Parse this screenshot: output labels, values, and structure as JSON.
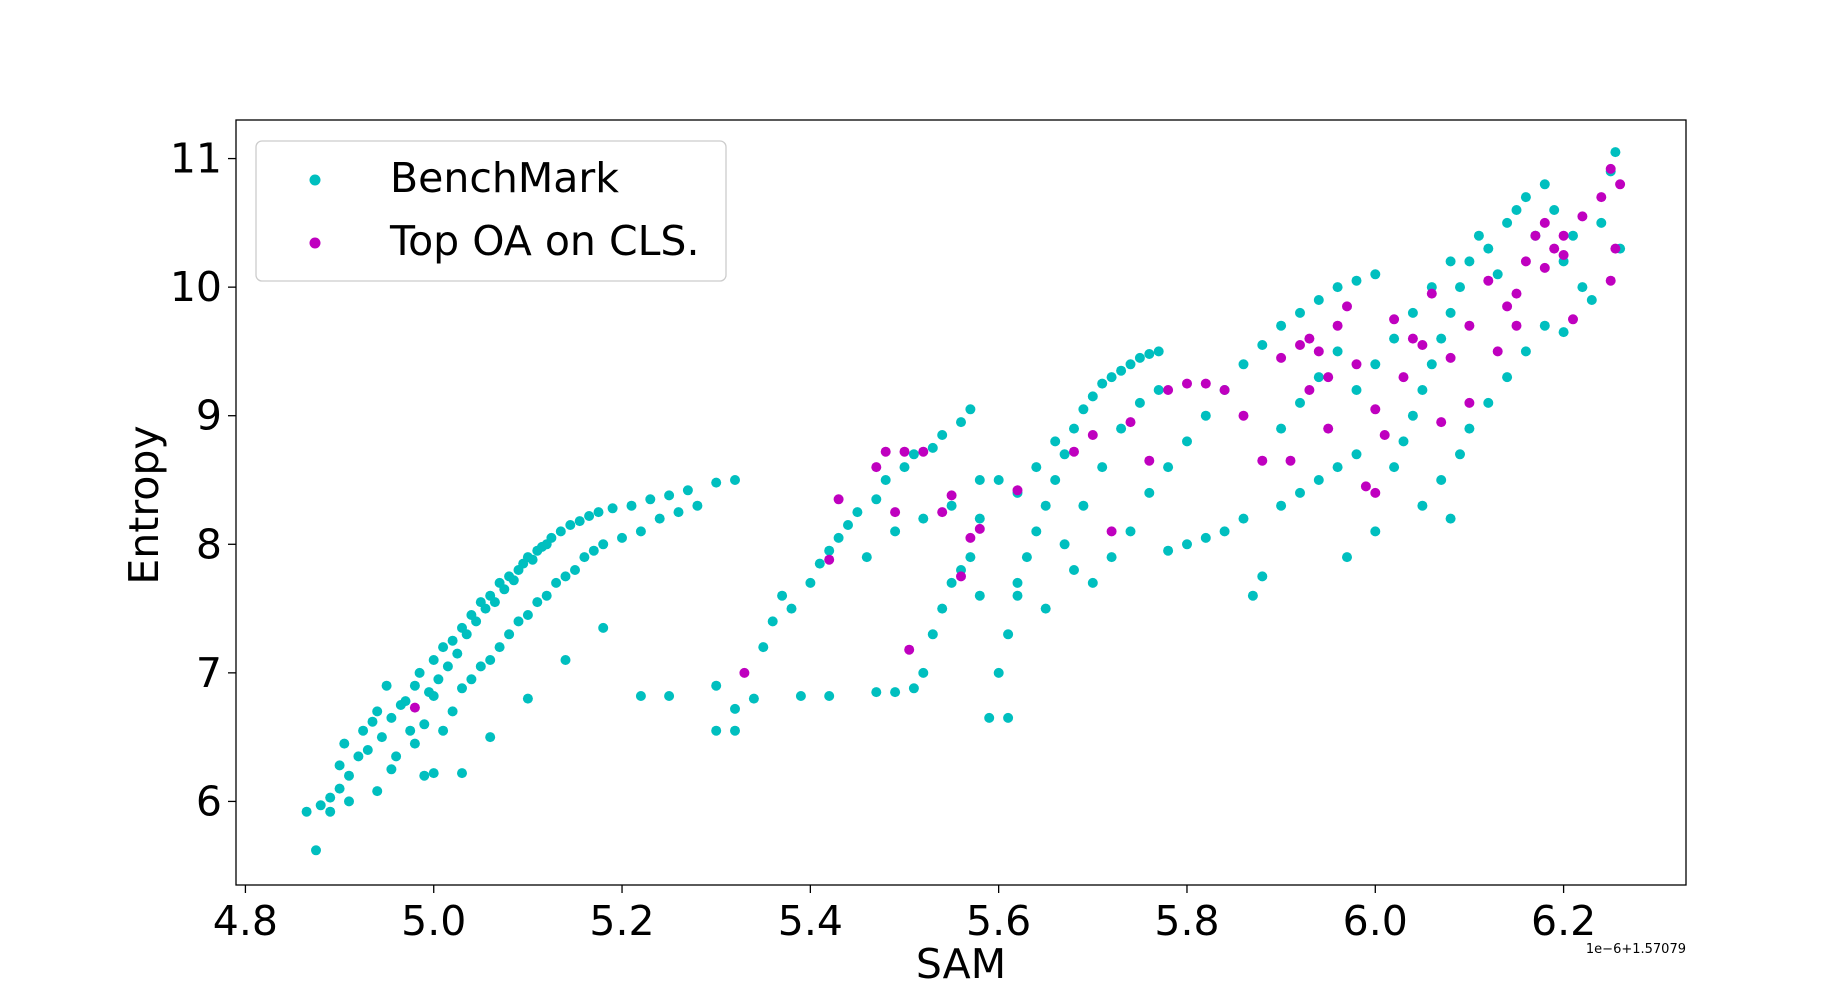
{
  "chart_data": {
    "type": "scatter",
    "xlabel": "SAM",
    "ylabel": "Entropy",
    "x_offset_label": "1e−6+1.57079",
    "xlim": [
      4.79,
      6.33
    ],
    "ylim": [
      5.35,
      11.3
    ],
    "xticks": [
      4.8,
      5.0,
      5.2,
      5.4,
      5.6,
      5.8,
      6.0,
      6.2
    ],
    "xtick_labels": [
      "4.8",
      "5.0",
      "5.2",
      "5.4",
      "5.6",
      "5.8",
      "6.0",
      "6.2"
    ],
    "yticks": [
      6,
      7,
      8,
      9,
      10,
      11
    ],
    "ytick_labels": [
      "6",
      "7",
      "8",
      "9",
      "10",
      "11"
    ],
    "grid": false,
    "legend_position": "upper-left",
    "series": [
      {
        "name": "BenchMark",
        "color": "#00bfbf",
        "points": [
          [
            4.865,
            5.92
          ],
          [
            4.875,
            5.62
          ],
          [
            4.88,
            5.97
          ],
          [
            4.89,
            5.92
          ],
          [
            4.89,
            6.03
          ],
          [
            4.9,
            6.1
          ],
          [
            4.9,
            6.28
          ],
          [
            4.905,
            6.45
          ],
          [
            4.91,
            6.2
          ],
          [
            4.91,
            6.0
          ],
          [
            4.92,
            6.35
          ],
          [
            4.925,
            6.55
          ],
          [
            4.93,
            6.4
          ],
          [
            4.935,
            6.62
          ],
          [
            4.94,
            6.08
          ],
          [
            4.94,
            6.7
          ],
          [
            4.945,
            6.5
          ],
          [
            4.95,
            6.9
          ],
          [
            4.955,
            6.25
          ],
          [
            4.955,
            6.65
          ],
          [
            4.96,
            6.35
          ],
          [
            4.965,
            6.75
          ],
          [
            4.97,
            6.78
          ],
          [
            4.975,
            6.55
          ],
          [
            4.98,
            6.45
          ],
          [
            4.98,
            6.9
          ],
          [
            4.985,
            7.0
          ],
          [
            4.99,
            6.6
          ],
          [
            4.99,
            6.2
          ],
          [
            4.995,
            6.85
          ],
          [
            5.0,
            7.1
          ],
          [
            5.0,
            6.82
          ],
          [
            5.005,
            6.95
          ],
          [
            5.01,
            7.2
          ],
          [
            5.01,
            6.55
          ],
          [
            5.015,
            7.05
          ],
          [
            5.02,
            7.25
          ],
          [
            5.02,
            6.7
          ],
          [
            5.025,
            7.15
          ],
          [
            5.03,
            7.35
          ],
          [
            5.03,
            6.88
          ],
          [
            5.035,
            7.3
          ],
          [
            5.04,
            7.45
          ],
          [
            5.04,
            6.95
          ],
          [
            5.045,
            7.4
          ],
          [
            5.05,
            7.55
          ],
          [
            5.05,
            7.05
          ],
          [
            5.055,
            7.5
          ],
          [
            5.06,
            7.6
          ],
          [
            5.06,
            7.1
          ],
          [
            5.065,
            7.55
          ],
          [
            5.07,
            7.7
          ],
          [
            5.07,
            7.2
          ],
          [
            5.075,
            7.65
          ],
          [
            5.08,
            7.75
          ],
          [
            5.08,
            7.3
          ],
          [
            5.085,
            7.72
          ],
          [
            5.09,
            7.8
          ],
          [
            5.09,
            7.4
          ],
          [
            5.095,
            7.85
          ],
          [
            5.1,
            7.9
          ],
          [
            5.1,
            7.45
          ],
          [
            5.105,
            7.88
          ],
          [
            5.11,
            7.95
          ],
          [
            5.11,
            7.55
          ],
          [
            5.115,
            7.98
          ],
          [
            5.12,
            8.0
          ],
          [
            5.12,
            7.6
          ],
          [
            5.125,
            8.05
          ],
          [
            5.13,
            7.7
          ],
          [
            5.135,
            8.1
          ],
          [
            5.14,
            7.75
          ],
          [
            5.145,
            8.15
          ],
          [
            5.15,
            7.8
          ],
          [
            5.155,
            8.18
          ],
          [
            5.16,
            7.9
          ],
          [
            5.165,
            8.22
          ],
          [
            5.17,
            7.95
          ],
          [
            5.175,
            8.25
          ],
          [
            5.18,
            8.0
          ],
          [
            5.19,
            8.28
          ],
          [
            5.2,
            8.05
          ],
          [
            5.21,
            8.3
          ],
          [
            5.22,
            8.1
          ],
          [
            5.23,
            8.35
          ],
          [
            5.24,
            8.2
          ],
          [
            5.25,
            8.38
          ],
          [
            5.26,
            8.25
          ],
          [
            5.27,
            8.42
          ],
          [
            5.28,
            8.3
          ],
          [
            5.3,
            8.48
          ],
          [
            5.32,
            8.5
          ],
          [
            5.0,
            6.22
          ],
          [
            5.03,
            6.22
          ],
          [
            5.06,
            6.5
          ],
          [
            5.1,
            6.8
          ],
          [
            5.14,
            7.1
          ],
          [
            5.18,
            7.35
          ],
          [
            5.22,
            6.82
          ],
          [
            5.25,
            6.82
          ],
          [
            5.3,
            6.55
          ],
          [
            5.32,
            6.55
          ],
          [
            5.3,
            6.9
          ],
          [
            5.32,
            6.72
          ],
          [
            5.34,
            6.8
          ],
          [
            5.35,
            7.2
          ],
          [
            5.36,
            7.4
          ],
          [
            5.37,
            7.6
          ],
          [
            5.38,
            7.5
          ],
          [
            5.39,
            6.82
          ],
          [
            5.4,
            7.7
          ],
          [
            5.41,
            7.85
          ],
          [
            5.42,
            7.95
          ],
          [
            5.42,
            6.82
          ],
          [
            5.43,
            8.05
          ],
          [
            5.44,
            8.15
          ],
          [
            5.45,
            8.25
          ],
          [
            5.46,
            7.9
          ],
          [
            5.47,
            8.35
          ],
          [
            5.48,
            8.5
          ],
          [
            5.49,
            8.1
          ],
          [
            5.5,
            8.6
          ],
          [
            5.51,
            8.7
          ],
          [
            5.52,
            8.2
          ],
          [
            5.53,
            8.75
          ],
          [
            5.54,
            8.85
          ],
          [
            5.55,
            8.3
          ],
          [
            5.56,
            8.95
          ],
          [
            5.57,
            9.05
          ],
          [
            5.58,
            8.5
          ],
          [
            5.47,
            6.85
          ],
          [
            5.49,
            6.85
          ],
          [
            5.51,
            6.88
          ],
          [
            5.52,
            7.0
          ],
          [
            5.53,
            7.3
          ],
          [
            5.54,
            7.5
          ],
          [
            5.55,
            7.7
          ],
          [
            5.56,
            7.8
          ],
          [
            5.57,
            7.9
          ],
          [
            5.58,
            7.6
          ],
          [
            5.59,
            6.65
          ],
          [
            5.61,
            6.65
          ],
          [
            5.6,
            7.0
          ],
          [
            5.61,
            7.3
          ],
          [
            5.62,
            7.6
          ],
          [
            5.63,
            7.9
          ],
          [
            5.64,
            8.1
          ],
          [
            5.65,
            8.3
          ],
          [
            5.66,
            8.5
          ],
          [
            5.67,
            8.7
          ],
          [
            5.68,
            8.9
          ],
          [
            5.69,
            9.05
          ],
          [
            5.7,
            9.15
          ],
          [
            5.71,
            9.25
          ],
          [
            5.72,
            9.3
          ],
          [
            5.73,
            9.35
          ],
          [
            5.74,
            9.4
          ],
          [
            5.75,
            9.45
          ],
          [
            5.76,
            9.48
          ],
          [
            5.77,
            9.5
          ],
          [
            5.62,
            8.4
          ],
          [
            5.64,
            8.6
          ],
          [
            5.66,
            8.8
          ],
          [
            5.68,
            7.8
          ],
          [
            5.7,
            7.7
          ],
          [
            5.72,
            7.9
          ],
          [
            5.74,
            8.1
          ],
          [
            5.76,
            8.4
          ],
          [
            5.78,
            8.6
          ],
          [
            5.8,
            8.8
          ],
          [
            5.82,
            9.0
          ],
          [
            5.84,
            9.2
          ],
          [
            5.86,
            9.4
          ],
          [
            5.88,
            9.55
          ],
          [
            5.9,
            9.7
          ],
          [
            5.92,
            9.8
          ],
          [
            5.94,
            9.9
          ],
          [
            5.96,
            10.0
          ],
          [
            5.98,
            10.05
          ],
          [
            6.0,
            10.1
          ],
          [
            5.78,
            7.95
          ],
          [
            5.8,
            8.0
          ],
          [
            5.82,
            8.05
          ],
          [
            5.84,
            8.1
          ],
          [
            5.86,
            8.2
          ],
          [
            5.87,
            7.6
          ],
          [
            5.88,
            7.75
          ],
          [
            5.9,
            8.3
          ],
          [
            5.92,
            8.4
          ],
          [
            5.94,
            8.5
          ],
          [
            5.96,
            8.6
          ],
          [
            5.97,
            7.9
          ],
          [
            5.98,
            8.7
          ],
          [
            6.0,
            8.1
          ],
          [
            6.02,
            8.6
          ],
          [
            6.03,
            8.8
          ],
          [
            6.04,
            9.0
          ],
          [
            6.05,
            9.2
          ],
          [
            6.06,
            9.4
          ],
          [
            6.07,
            9.6
          ],
          [
            6.08,
            9.8
          ],
          [
            6.09,
            10.0
          ],
          [
            6.1,
            10.2
          ],
          [
            6.11,
            10.4
          ],
          [
            6.12,
            10.3
          ],
          [
            6.13,
            10.1
          ],
          [
            6.14,
            10.5
          ],
          [
            6.15,
            10.6
          ],
          [
            6.16,
            10.7
          ],
          [
            6.17,
            10.4
          ],
          [
            6.18,
            10.8
          ],
          [
            6.19,
            10.6
          ],
          [
            6.2,
            10.2
          ],
          [
            6.21,
            10.4
          ],
          [
            6.22,
            10.0
          ],
          [
            6.23,
            9.9
          ],
          [
            6.24,
            10.5
          ],
          [
            6.25,
            10.9
          ],
          [
            6.255,
            11.05
          ],
          [
            6.26,
            10.3
          ],
          [
            6.05,
            8.3
          ],
          [
            6.07,
            8.5
          ],
          [
            6.08,
            8.2
          ],
          [
            6.09,
            8.7
          ],
          [
            6.1,
            8.9
          ],
          [
            6.12,
            9.1
          ],
          [
            6.14,
            9.3
          ],
          [
            6.16,
            9.5
          ],
          [
            6.18,
            9.7
          ],
          [
            6.2,
            9.65
          ],
          [
            5.58,
            8.2
          ],
          [
            5.6,
            8.5
          ],
          [
            5.62,
            7.7
          ],
          [
            5.65,
            7.5
          ],
          [
            5.67,
            8.0
          ],
          [
            5.69,
            8.3
          ],
          [
            5.71,
            8.6
          ],
          [
            5.73,
            8.9
          ],
          [
            5.75,
            9.1
          ],
          [
            5.77,
            9.2
          ],
          [
            5.9,
            8.9
          ],
          [
            5.92,
            9.1
          ],
          [
            5.94,
            9.3
          ],
          [
            5.96,
            9.5
          ],
          [
            5.98,
            9.2
          ],
          [
            6.0,
            9.4
          ],
          [
            6.02,
            9.6
          ],
          [
            6.04,
            9.8
          ],
          [
            6.06,
            10.0
          ],
          [
            6.08,
            10.2
          ]
        ]
      },
      {
        "name": "Top OA on CLS.",
        "color": "#bf00bf",
        "points": [
          [
            4.98,
            6.73
          ],
          [
            5.33,
            7.0
          ],
          [
            5.42,
            7.88
          ],
          [
            5.43,
            8.35
          ],
          [
            5.47,
            8.6
          ],
          [
            5.48,
            8.72
          ],
          [
            5.49,
            8.25
          ],
          [
            5.5,
            8.72
          ],
          [
            5.505,
            7.18
          ],
          [
            5.52,
            8.72
          ],
          [
            5.54,
            8.25
          ],
          [
            5.55,
            8.38
          ],
          [
            5.56,
            7.75
          ],
          [
            5.57,
            8.05
          ],
          [
            5.58,
            8.12
          ],
          [
            5.62,
            8.42
          ],
          [
            5.68,
            8.72
          ],
          [
            5.7,
            8.85
          ],
          [
            5.72,
            8.1
          ],
          [
            5.74,
            8.95
          ],
          [
            5.76,
            8.65
          ],
          [
            5.78,
            9.2
          ],
          [
            5.8,
            9.25
          ],
          [
            5.82,
            9.25
          ],
          [
            5.84,
            9.2
          ],
          [
            5.86,
            9.0
          ],
          [
            5.88,
            8.65
          ],
          [
            5.9,
            9.45
          ],
          [
            5.91,
            8.65
          ],
          [
            5.92,
            9.55
          ],
          [
            5.93,
            9.6
          ],
          [
            5.94,
            9.5
          ],
          [
            5.95,
            9.3
          ],
          [
            5.96,
            9.7
          ],
          [
            5.97,
            9.85
          ],
          [
            5.98,
            9.4
          ],
          [
            5.99,
            8.45
          ],
          [
            6.0,
            8.4
          ],
          [
            6.01,
            8.85
          ],
          [
            6.02,
            9.75
          ],
          [
            6.03,
            9.3
          ],
          [
            6.04,
            9.6
          ],
          [
            6.05,
            9.55
          ],
          [
            6.06,
            9.95
          ],
          [
            6.07,
            8.95
          ],
          [
            6.08,
            9.45
          ],
          [
            6.1,
            9.7
          ],
          [
            6.12,
            10.05
          ],
          [
            6.13,
            9.5
          ],
          [
            6.14,
            9.85
          ],
          [
            6.15,
            9.95
          ],
          [
            6.16,
            10.2
          ],
          [
            6.17,
            10.4
          ],
          [
            6.18,
            10.15
          ],
          [
            6.19,
            10.3
          ],
          [
            6.2,
            10.4
          ],
          [
            6.21,
            9.75
          ],
          [
            6.22,
            10.55
          ],
          [
            6.24,
            10.7
          ],
          [
            6.25,
            10.05
          ],
          [
            6.255,
            10.3
          ],
          [
            6.26,
            10.8
          ],
          [
            6.25,
            10.92
          ],
          [
            6.1,
            9.1
          ],
          [
            6.0,
            9.05
          ],
          [
            5.95,
            8.9
          ],
          [
            5.93,
            9.2
          ],
          [
            6.15,
            9.7
          ],
          [
            6.18,
            10.5
          ],
          [
            6.2,
            10.25
          ]
        ]
      }
    ]
  }
}
